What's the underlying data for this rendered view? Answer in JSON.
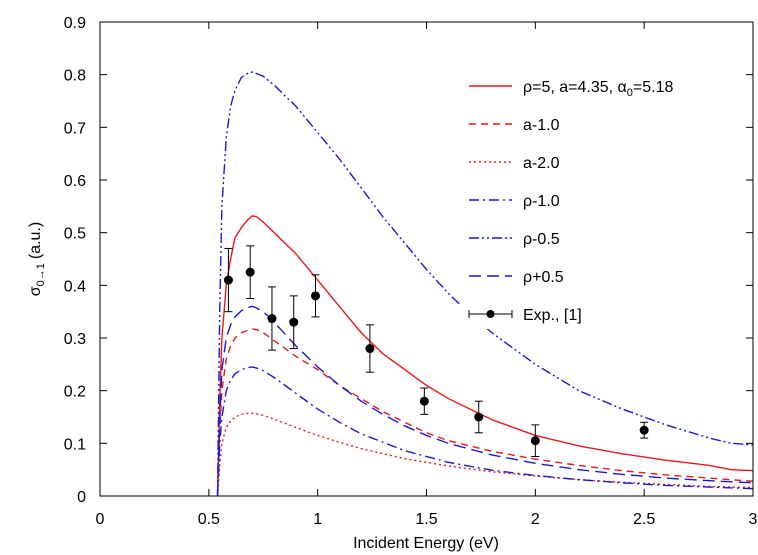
{
  "chart_data": {
    "type": "line",
    "xlabel": "Incident Energy (eV)",
    "ylabel": "σ",
    "ylabel_sub": "0→1",
    "ylabel_unit": "(a.u.)",
    "xlim": [
      0,
      3
    ],
    "ylim": [
      0,
      0.9
    ],
    "x_ticks": [
      0,
      0.5,
      1,
      1.5,
      2,
      2.5,
      3
    ],
    "x_tick_labels": [
      "0",
      "0.5",
      "1",
      "1.5",
      "2",
      "2.5",
      "3"
    ],
    "y_ticks": [
      0,
      0.1,
      0.2,
      0.3,
      0.4,
      0.5,
      0.6,
      0.7,
      0.8,
      0.9
    ],
    "y_tick_labels": [
      "0",
      "0.1",
      "0.2",
      "0.3",
      "0.4",
      "0.5",
      "0.6",
      "0.7",
      "0.8",
      "0.9"
    ],
    "grid": false,
    "legend_position": "top-right",
    "series": [
      {
        "name": "ρ=5, a=4.35, α0=5.18",
        "label_main": "ρ=5, a=4.35, α",
        "label_sub": "0",
        "label_tail": "=5.18",
        "color": "#e8191c",
        "dash": "solid",
        "x": [
          0.54,
          0.55,
          0.56,
          0.58,
          0.6,
          0.62,
          0.65,
          0.68,
          0.7,
          0.72,
          0.75,
          0.8,
          0.9,
          1.0,
          1.1,
          1.2,
          1.3,
          1.4,
          1.5,
          1.6,
          1.7,
          1.8,
          1.9,
          2.0,
          2.2,
          2.4,
          2.6,
          2.8,
          2.9,
          3.0
        ],
        "y": [
          0.0,
          0.18,
          0.3,
          0.4,
          0.45,
          0.49,
          0.51,
          0.525,
          0.532,
          0.53,
          0.52,
          0.5,
          0.46,
          0.41,
          0.36,
          0.31,
          0.27,
          0.24,
          0.21,
          0.185,
          0.165,
          0.145,
          0.13,
          0.115,
          0.095,
          0.08,
          0.068,
          0.058,
          0.05,
          0.048
        ]
      },
      {
        "name": "a-1.0",
        "color": "#e8191c",
        "dash": "dashed",
        "x": [
          0.54,
          0.55,
          0.56,
          0.58,
          0.6,
          0.62,
          0.65,
          0.68,
          0.7,
          0.72,
          0.75,
          0.8,
          0.9,
          1.0,
          1.1,
          1.2,
          1.3,
          1.4,
          1.5,
          1.6,
          1.8,
          2.0,
          2.2,
          2.4,
          2.6,
          2.8,
          3.0
        ],
        "y": [
          0.0,
          0.12,
          0.2,
          0.26,
          0.285,
          0.3,
          0.31,
          0.315,
          0.317,
          0.316,
          0.31,
          0.295,
          0.265,
          0.24,
          0.21,
          0.185,
          0.16,
          0.14,
          0.12,
          0.105,
          0.085,
          0.07,
          0.058,
          0.048,
          0.04,
          0.034,
          0.028
        ]
      },
      {
        "name": "a-2.0",
        "color": "#e8191c",
        "dash": "dotted",
        "x": [
          0.54,
          0.55,
          0.56,
          0.58,
          0.6,
          0.62,
          0.65,
          0.68,
          0.7,
          0.72,
          0.75,
          0.8,
          0.9,
          1.0,
          1.1,
          1.2,
          1.4,
          1.6,
          1.8,
          2.0,
          2.2,
          2.4,
          2.6,
          2.8,
          3.0
        ],
        "y": [
          0.0,
          0.06,
          0.1,
          0.13,
          0.142,
          0.15,
          0.155,
          0.157,
          0.157,
          0.156,
          0.153,
          0.146,
          0.13,
          0.115,
          0.102,
          0.09,
          0.071,
          0.057,
          0.046,
          0.038,
          0.031,
          0.026,
          0.022,
          0.018,
          0.016
        ]
      },
      {
        "name": "ρ-1.0",
        "color": "#1a1ad6",
        "dash": "dashdot",
        "x": [
          0.54,
          0.55,
          0.56,
          0.58,
          0.6,
          0.62,
          0.65,
          0.68,
          0.7,
          0.72,
          0.75,
          0.8,
          0.9,
          1.0,
          1.1,
          1.2,
          1.4,
          1.6,
          1.8,
          2.0,
          2.2,
          2.4,
          2.6,
          2.8,
          3.0
        ],
        "y": [
          0.0,
          0.1,
          0.15,
          0.2,
          0.22,
          0.232,
          0.24,
          0.244,
          0.245,
          0.243,
          0.238,
          0.225,
          0.195,
          0.165,
          0.14,
          0.118,
          0.086,
          0.064,
          0.049,
          0.039,
          0.031,
          0.025,
          0.02,
          0.017,
          0.014
        ]
      },
      {
        "name": "ρ-0.5",
        "color": "#1a1ad6",
        "dash": "dashdotdot",
        "x": [
          0.54,
          0.55,
          0.56,
          0.58,
          0.6,
          0.62,
          0.65,
          0.68,
          0.7,
          0.72,
          0.75,
          0.8,
          0.9,
          1.0,
          1.1,
          1.2,
          1.3,
          1.4,
          1.5,
          1.6,
          1.7,
          1.8,
          1.9,
          2.0,
          2.2,
          2.4,
          2.6,
          2.8,
          2.9,
          3.0
        ],
        "y": [
          0.0,
          0.35,
          0.55,
          0.68,
          0.74,
          0.77,
          0.795,
          0.803,
          0.805,
          0.802,
          0.797,
          0.78,
          0.74,
          0.69,
          0.64,
          0.585,
          0.53,
          0.48,
          0.43,
          0.385,
          0.345,
          0.31,
          0.28,
          0.25,
          0.2,
          0.165,
          0.135,
          0.11,
          0.1,
          0.097
        ]
      },
      {
        "name": "ρ+0.5",
        "color": "#1a1ad6",
        "dash": "longdash",
        "x": [
          0.54,
          0.55,
          0.56,
          0.58,
          0.6,
          0.62,
          0.65,
          0.68,
          0.7,
          0.72,
          0.75,
          0.8,
          0.9,
          1.0,
          1.1,
          1.2,
          1.3,
          1.4,
          1.5,
          1.6,
          1.8,
          2.0,
          2.2,
          2.4,
          2.6,
          2.8,
          3.0
        ],
        "y": [
          0.0,
          0.14,
          0.24,
          0.3,
          0.325,
          0.34,
          0.352,
          0.358,
          0.36,
          0.357,
          0.35,
          0.33,
          0.285,
          0.245,
          0.21,
          0.18,
          0.155,
          0.133,
          0.115,
          0.1,
          0.078,
          0.062,
          0.05,
          0.041,
          0.034,
          0.029,
          0.025
        ]
      }
    ],
    "experimental": {
      "name": "Exp., [1]",
      "color": "#000000",
      "points": [
        {
          "x": 0.59,
          "y": 0.41,
          "err": 0.06
        },
        {
          "x": 0.69,
          "y": 0.425,
          "err": 0.05
        },
        {
          "x": 0.79,
          "y": 0.337,
          "err": 0.06
        },
        {
          "x": 0.89,
          "y": 0.33,
          "err": 0.05
        },
        {
          "x": 0.99,
          "y": 0.38,
          "err": 0.04
        },
        {
          "x": 1.24,
          "y": 0.28,
          "err": 0.045
        },
        {
          "x": 1.49,
          "y": 0.18,
          "err": 0.025
        },
        {
          "x": 1.74,
          "y": 0.15,
          "err": 0.03
        },
        {
          "x": 2.0,
          "y": 0.105,
          "err": 0.03
        },
        {
          "x": 2.5,
          "y": 0.125,
          "err": 0.015
        }
      ]
    }
  }
}
